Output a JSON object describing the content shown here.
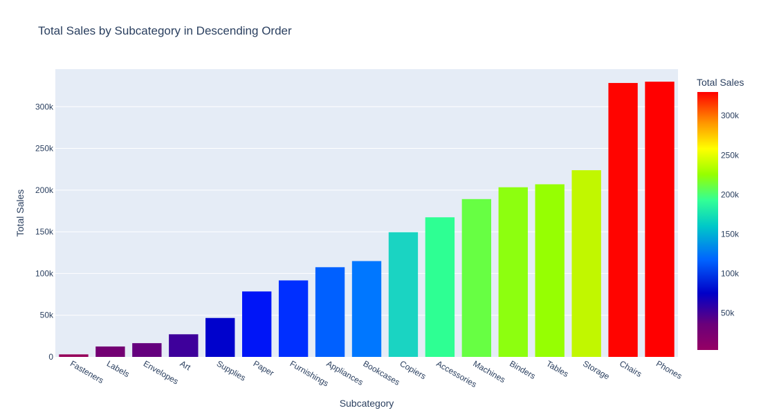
{
  "chart_data": {
    "type": "bar",
    "title": "Total Sales by Subcategory in Descending Order",
    "xlabel": "Subcategory",
    "ylabel": "Total Sales",
    "categories": [
      "Fasteners",
      "Labels",
      "Envelopes",
      "Art",
      "Supplies",
      "Paper",
      "Furnishings",
      "Appliances",
      "Bookcases",
      "Copiers",
      "Accessories",
      "Machines",
      "Binders",
      "Tables",
      "Storage",
      "Chairs",
      "Phones"
    ],
    "values": [
      3024,
      12486,
      16476,
      27119,
      46674,
      78479,
      91705,
      107532,
      114880,
      149528,
      167380,
      189239,
      203413,
      206966,
      223844,
      328449,
      330007
    ],
    "ylim": [
      0,
      345000
    ],
    "y_ticks": [
      0,
      50000,
      100000,
      150000,
      200000,
      250000,
      300000
    ],
    "y_tick_labels": [
      "0",
      "50k",
      "100k",
      "150k",
      "200k",
      "250k",
      "300k"
    ],
    "grid": true,
    "colorscale": "Rainbow",
    "colorbar": {
      "title": "Total Sales",
      "range": [
        3024,
        330007
      ],
      "ticks": [
        50000,
        100000,
        150000,
        200000,
        250000,
        300000
      ],
      "tick_labels": [
        "50k",
        "100k",
        "150k",
        "200k",
        "250k",
        "300k"
      ]
    },
    "plot_background": "#e5ecf6"
  }
}
